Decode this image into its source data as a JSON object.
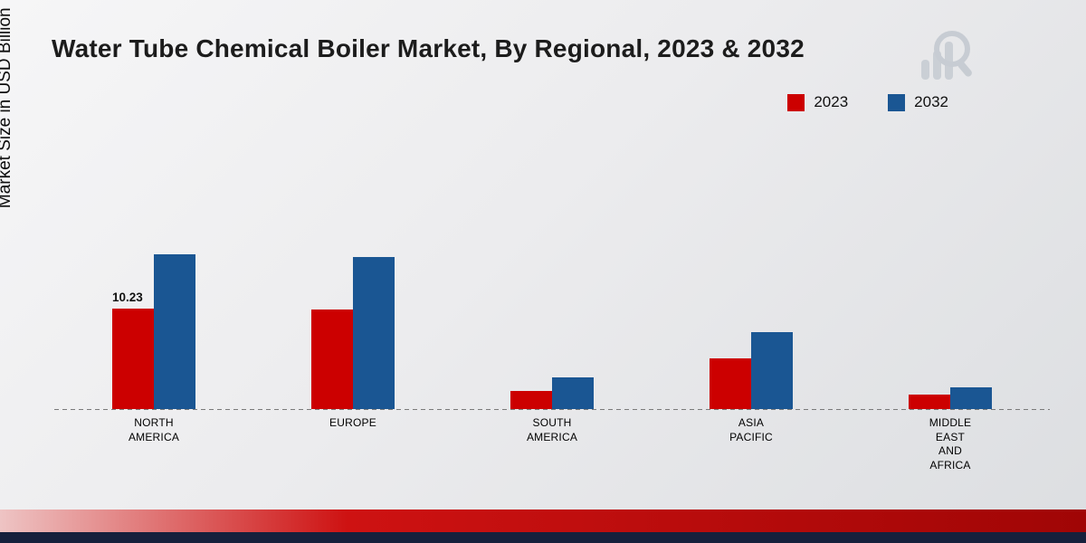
{
  "title": "Water Tube Chemical Boiler Market, By Regional, 2023 & 2032",
  "y_axis_label": "Market Size in USD Billion",
  "legend": {
    "items": [
      {
        "label": "2023",
        "color": "#cc0000"
      },
      {
        "label": "2032",
        "color": "#1a5693"
      }
    ],
    "position": "top-right"
  },
  "colors": {
    "series_2023": "#cc0000",
    "series_2032": "#1a5693",
    "footer_red_start": "#eec4c4",
    "footer_red_mid": "#ce1212",
    "footer_red_end": "#a00505",
    "footer_navy": "#16203c",
    "baseline": "#7a7a7a",
    "logo_gray": "#c6cbd2"
  },
  "chart_data": {
    "type": "bar",
    "title": "Water Tube Chemical Boiler Market, By Regional, 2023 & 2032",
    "xlabel": "",
    "ylabel": "Market Size in USD Billion",
    "categories": [
      [
        "NORTH",
        "AMERICA"
      ],
      [
        "EUROPE"
      ],
      [
        "SOUTH",
        "AMERICA"
      ],
      [
        "ASIA",
        "PACIFIC"
      ],
      [
        "MIDDLE",
        "EAST",
        "AND",
        "AFRICA"
      ]
    ],
    "series": [
      {
        "name": "2023",
        "color": "#cc0000",
        "values": [
          10.23,
          10.1,
          1.8,
          5.2,
          1.5
        ]
      },
      {
        "name": "2032",
        "color": "#1a5693",
        "values": [
          15.8,
          15.5,
          3.2,
          7.8,
          2.2
        ]
      }
    ],
    "value_labels": {
      "0_0": "10.23"
    },
    "ylim": [
      0,
      18
    ],
    "grid": false,
    "legend_position": "top-right",
    "baseline_style": "dashed"
  }
}
